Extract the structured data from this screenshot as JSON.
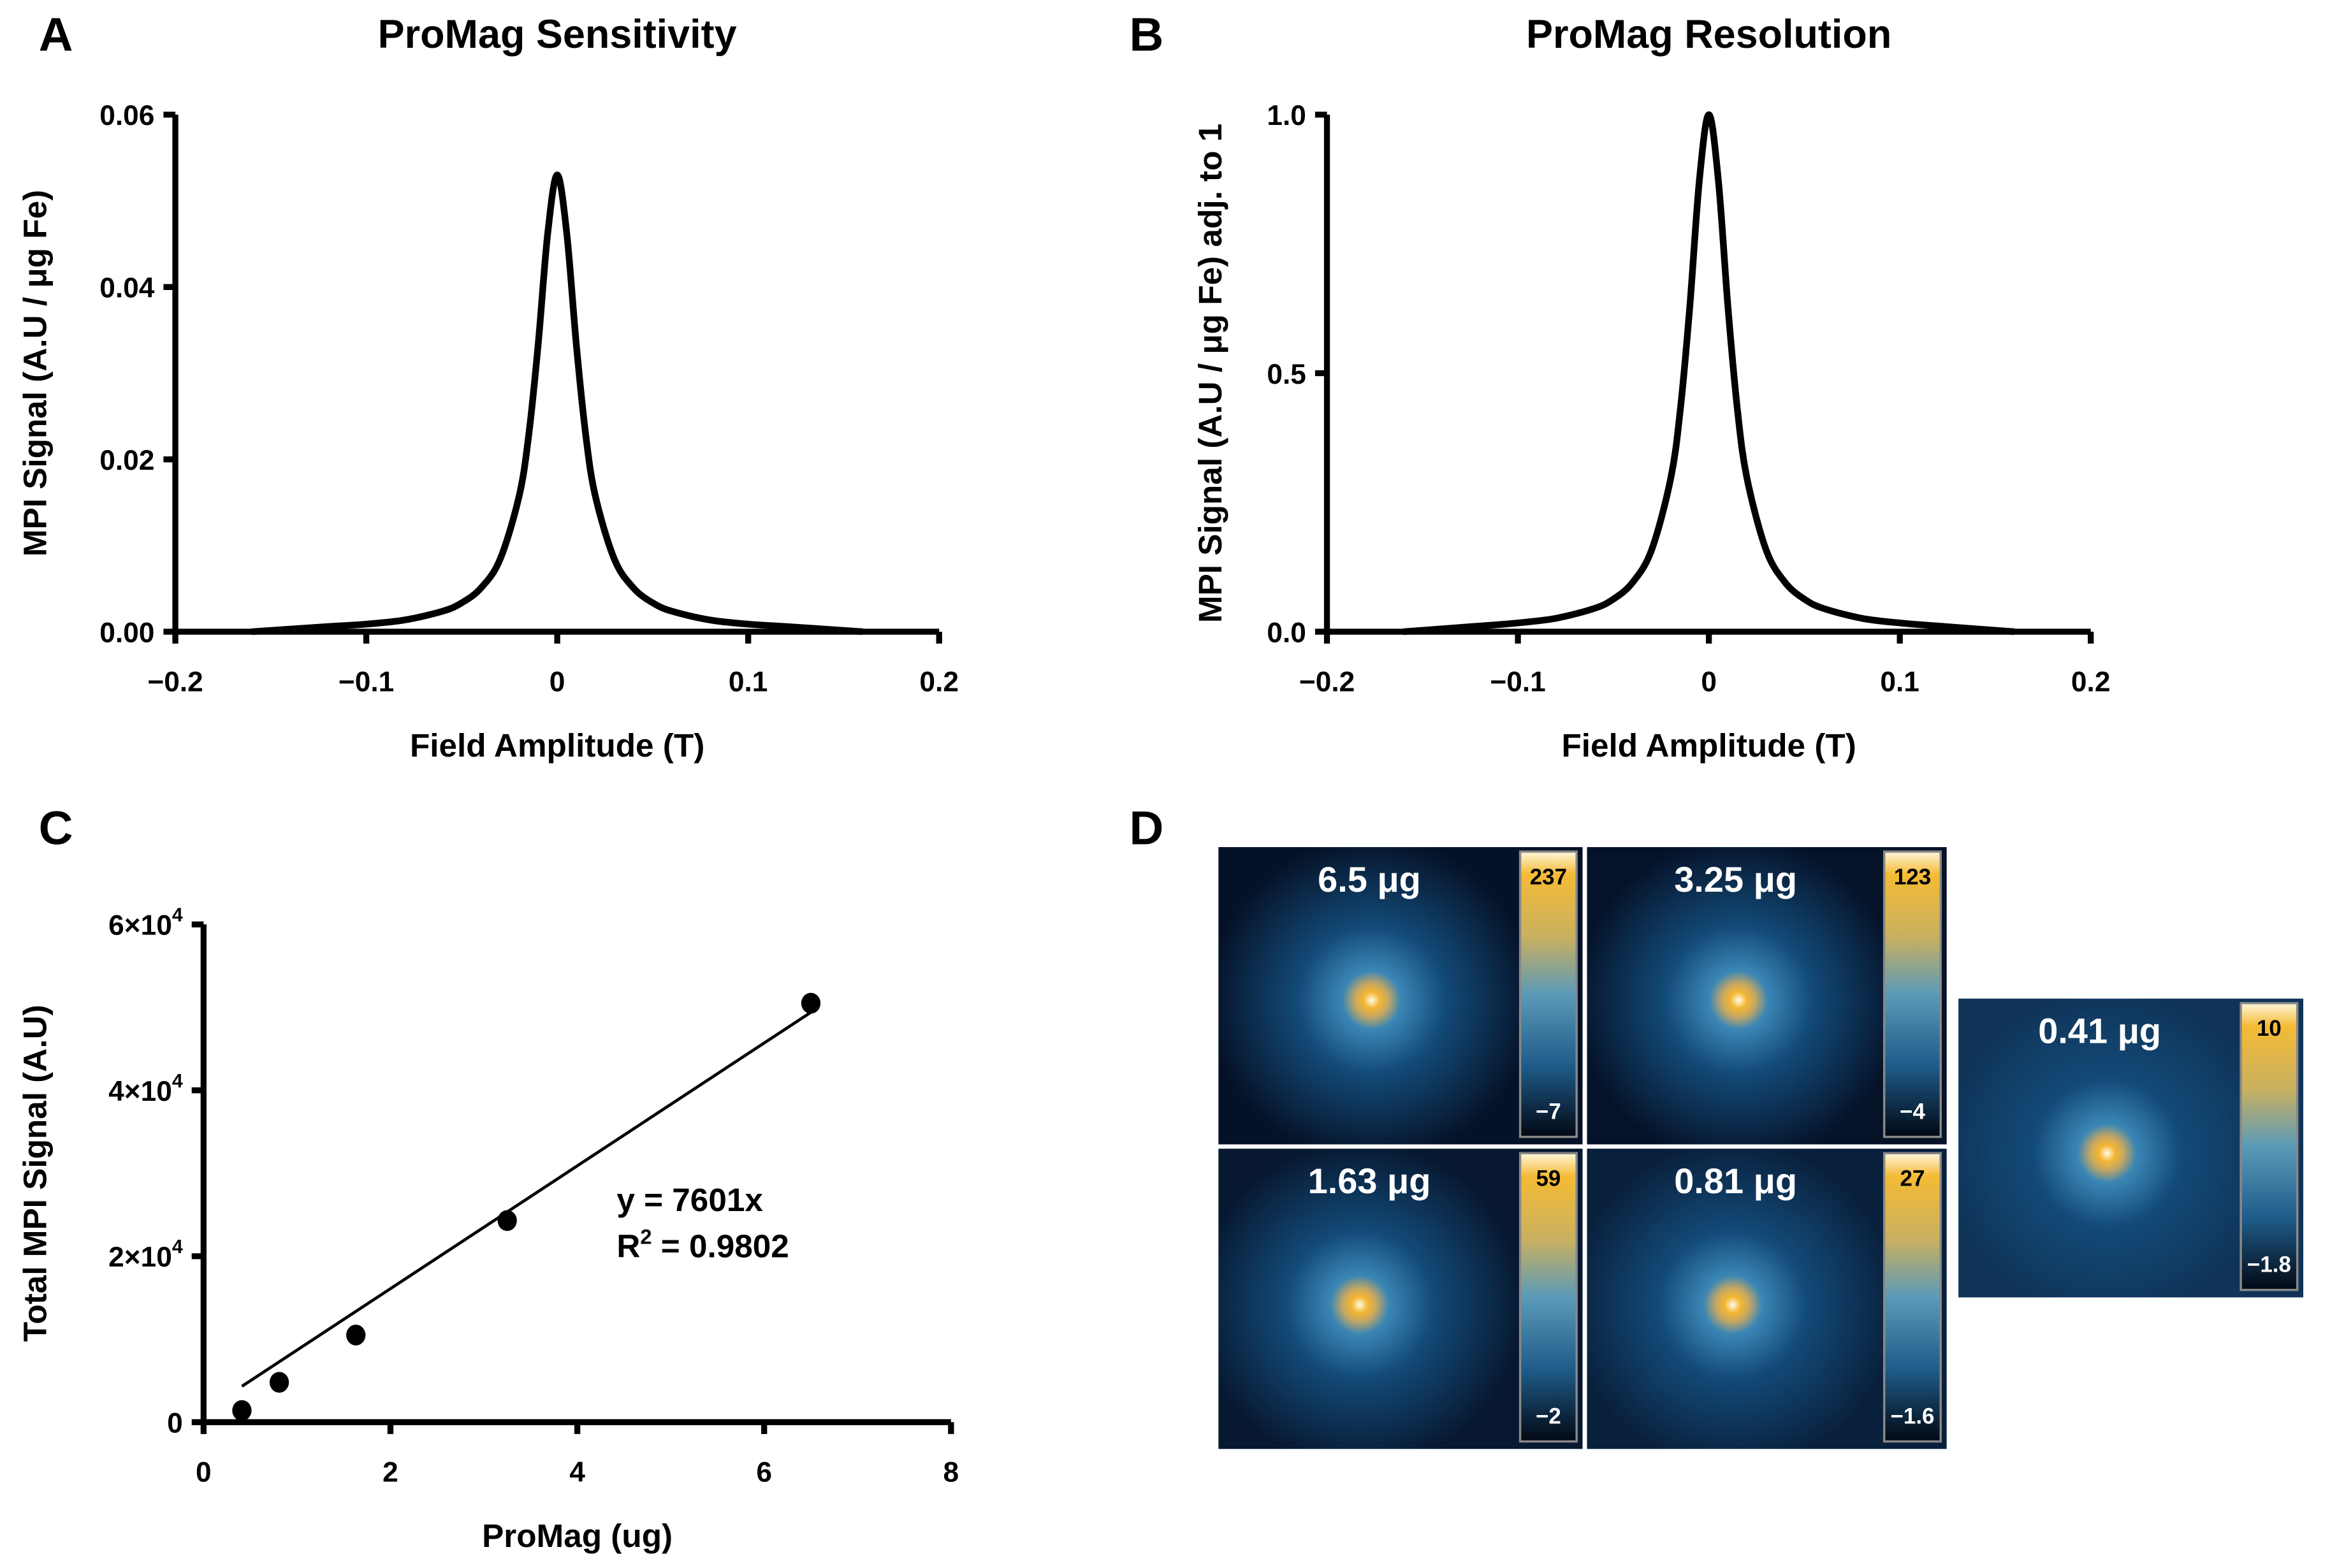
{
  "chart_data": [
    {
      "panel": "A",
      "type": "line",
      "title": "ProMag Sensitivity",
      "xlabel": "Field Amplitude (T)",
      "ylabel": "MPI Signal (A.U / μg Fe)",
      "xlim": [
        -0.2,
        0.2
      ],
      "ylim": [
        0,
        0.06
      ],
      "xticks": [
        "−0.2",
        "−0.1",
        "0",
        "0.1",
        "0.2"
      ],
      "xtick_values": [
        -0.2,
        -0.1,
        0,
        0.1,
        0.2
      ],
      "yticks": [
        "0.00",
        "0.02",
        "0.04",
        "0.06"
      ],
      "ytick_values": [
        0,
        0.02,
        0.04,
        0.06
      ],
      "x": [
        -0.16,
        -0.12,
        -0.1,
        -0.08,
        -0.06,
        -0.05,
        -0.04,
        -0.03,
        -0.02,
        -0.015,
        -0.01,
        -0.005,
        0,
        0.005,
        0.01,
        0.015,
        0.02,
        0.03,
        0.04,
        0.05,
        0.06,
        0.08,
        0.1,
        0.12,
        0.16
      ],
      "y": [
        0,
        0.0006,
        0.00088,
        0.00136,
        0.00238,
        0.00335,
        0.00506,
        0.00837,
        0.0157,
        0.0227,
        0.0333,
        0.0462,
        0.053,
        0.0462,
        0.0333,
        0.0227,
        0.0157,
        0.00837,
        0.00506,
        0.00335,
        0.00238,
        0.00136,
        0.00088,
        0.0006,
        0
      ]
    },
    {
      "panel": "B",
      "type": "line",
      "title": "ProMag Resolution",
      "xlabel": "Field Amplitude (T)",
      "ylabel": "MPI Signal (A.U / μg Fe) adj. to 1",
      "xlim": [
        -0.2,
        0.2
      ],
      "ylim": [
        0,
        1.0
      ],
      "xticks": [
        "−0.2",
        "−0.1",
        "0",
        "0.1",
        "0.2"
      ],
      "xtick_values": [
        -0.2,
        -0.1,
        0,
        0.1,
        0.2
      ],
      "yticks": [
        "0.0",
        "0.5",
        "1.0"
      ],
      "ytick_values": [
        0,
        0.5,
        1.0
      ],
      "x": [
        -0.16,
        -0.12,
        -0.1,
        -0.08,
        -0.06,
        -0.05,
        -0.04,
        -0.03,
        -0.02,
        -0.015,
        -0.01,
        -0.005,
        0,
        0.005,
        0.01,
        0.015,
        0.02,
        0.03,
        0.04,
        0.05,
        0.06,
        0.08,
        0.1,
        0.12,
        0.16
      ],
      "y": [
        0,
        0.011,
        0.017,
        0.026,
        0.045,
        0.063,
        0.095,
        0.158,
        0.296,
        0.428,
        0.628,
        0.872,
        1.0,
        0.872,
        0.628,
        0.428,
        0.296,
        0.158,
        0.095,
        0.063,
        0.045,
        0.026,
        0.017,
        0.011,
        0
      ]
    },
    {
      "panel": "C",
      "type": "scatter",
      "title": "",
      "xlabel": "ProMag (ug)",
      "ylabel": "Total MPI Signal (A.U)",
      "xlim": [
        0,
        8
      ],
      "ylim": [
        0,
        60000
      ],
      "xticks": [
        "0",
        "2",
        "4",
        "6",
        "8"
      ],
      "xtick_values": [
        0,
        2,
        4,
        6,
        8
      ],
      "yticks": [
        "0",
        "2×10",
        "4×10",
        "6×10"
      ],
      "ytick_exp": [
        "",
        "4",
        "4",
        "4"
      ],
      "ytick_values": [
        0,
        20000,
        40000,
        60000
      ],
      "x": [
        0.41,
        0.81,
        1.63,
        3.25,
        6.5
      ],
      "y": [
        1400,
        4800,
        10500,
        24300,
        50500
      ],
      "fit": {
        "slope": 7601,
        "x_range": [
          0.41,
          6.5
        ]
      },
      "annotation_eq": "y = 7601x",
      "annotation_r2_prefix": "R",
      "annotation_r2_sup": "2",
      "annotation_r2_value": " = 0.9802"
    },
    {
      "panel": "D",
      "type": "heatmap",
      "images": [
        {
          "label": "6.5 μg",
          "cmax": "237",
          "cmin": "−7",
          "background": 0.05
        },
        {
          "label": "3.25 μg",
          "cmax": "123",
          "cmin": "−4",
          "background": 0.06
        },
        {
          "label": "1.63 μg",
          "cmax": "59",
          "cmin": "−2",
          "background": 0.1
        },
        {
          "label": "0.81 μg",
          "cmax": "27",
          "cmin": "−1.6",
          "background": 0.16
        },
        {
          "label": "0.41 μg",
          "cmax": "10",
          "cmin": "−1.8",
          "background": 0.3
        }
      ]
    }
  ],
  "panel_labels": [
    "A",
    "B",
    "C",
    "D"
  ],
  "colors": {
    "hot": "#f2b632",
    "mid": "#3c86b0",
    "dark": "#020a1c"
  }
}
